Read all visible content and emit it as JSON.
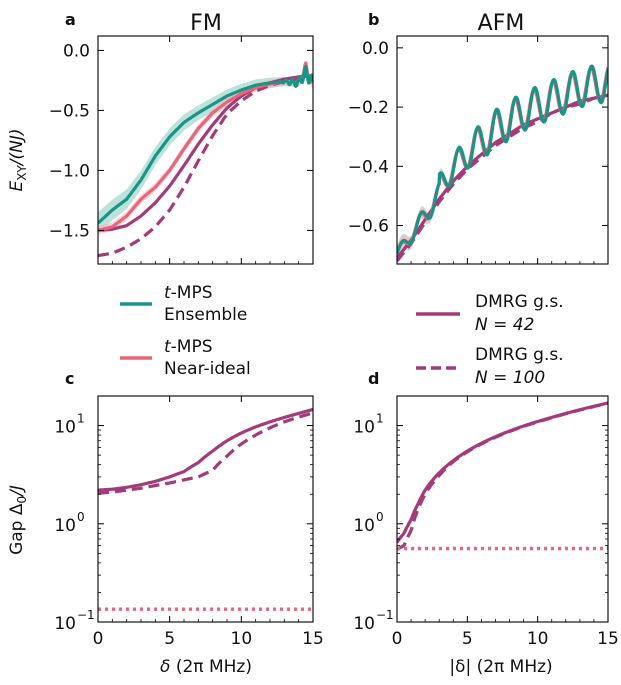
{
  "chart_data": [
    {
      "panel": "a",
      "type": "line",
      "title": "FM",
      "ylabel": "E_XY/(NJ)",
      "xlim": [
        0,
        15
      ],
      "ylim": [
        -1.78,
        0.12
      ],
      "yticks": [
        "0.0",
        "−0.5",
        "−1.0",
        "−1.5"
      ],
      "ytick_values": [
        0,
        -0.5,
        -1.0,
        -1.5
      ],
      "series": [
        {
          "key": "ensemble",
          "x": [
            0,
            1,
            2,
            3,
            4,
            5,
            6,
            7,
            8,
            9,
            10,
            11,
            12,
            13,
            14,
            14.5,
            15
          ],
          "y": [
            -1.44,
            -1.33,
            -1.24,
            -1.08,
            -0.88,
            -0.72,
            -0.6,
            -0.52,
            -0.45,
            -0.38,
            -0.33,
            -0.29,
            -0.27,
            -0.26,
            -0.27,
            -0.18,
            -0.28
          ]
        },
        {
          "key": "near_ideal",
          "x": [
            0,
            1,
            2,
            3,
            4,
            5,
            6,
            7,
            8,
            9,
            10,
            11,
            12,
            13,
            14,
            14.5,
            15
          ],
          "y": [
            -1.5,
            -1.47,
            -1.38,
            -1.24,
            -1.14,
            -1.0,
            -0.82,
            -0.65,
            -0.52,
            -0.43,
            -0.36,
            -0.31,
            -0.28,
            -0.26,
            -0.27,
            -0.15,
            -0.3
          ]
        },
        {
          "key": "dmrg42",
          "x": [
            0,
            1,
            2,
            3,
            4,
            5,
            6,
            7,
            8,
            9,
            10,
            11,
            12,
            13,
            14,
            15
          ],
          "y": [
            -1.5,
            -1.49,
            -1.46,
            -1.38,
            -1.27,
            -1.13,
            -0.96,
            -0.78,
            -0.62,
            -0.48,
            -0.38,
            -0.31,
            -0.27,
            -0.24,
            -0.22,
            -0.21
          ]
        },
        {
          "key": "dmrg100",
          "x": [
            0,
            1,
            2,
            3,
            4,
            5,
            6,
            7,
            8,
            9,
            10,
            11,
            12,
            13,
            14,
            15
          ],
          "y": [
            -1.71,
            -1.69,
            -1.64,
            -1.57,
            -1.47,
            -1.33,
            -1.14,
            -0.92,
            -0.71,
            -0.53,
            -0.42,
            -0.34,
            -0.29,
            -0.26,
            -0.24,
            -0.23
          ]
        }
      ]
    },
    {
      "panel": "b",
      "type": "line",
      "title": "AFM",
      "xlim": [
        0,
        15
      ],
      "ylim": [
        -0.73,
        0.04
      ],
      "yticks": [
        "0.0",
        "−0.2",
        "−0.4",
        "−0.6"
      ],
      "ytick_values": [
        0,
        -0.2,
        -0.4,
        -0.6
      ],
      "series": [
        {
          "key": "ensemble",
          "type": "oscillating",
          "amp": 0.065,
          "period": 1.35
        },
        {
          "key": "near_ideal",
          "type": "oscillating",
          "amp": 0.06,
          "period": 1.35
        },
        {
          "key": "dmrg42",
          "x": [
            0,
            1,
            2,
            3,
            4,
            5,
            6,
            7,
            8,
            9,
            10,
            11,
            12,
            13,
            14,
            15
          ],
          "y": [
            -0.71,
            -0.65,
            -0.58,
            -0.51,
            -0.45,
            -0.4,
            -0.36,
            -0.32,
            -0.29,
            -0.26,
            -0.24,
            -0.22,
            -0.2,
            -0.18,
            -0.17,
            -0.16
          ]
        },
        {
          "key": "dmrg100",
          "x": [
            0,
            1,
            2,
            3,
            4,
            5,
            6,
            7,
            8,
            9,
            10,
            11,
            12,
            13,
            14,
            15
          ],
          "y": [
            -0.72,
            -0.66,
            -0.59,
            -0.52,
            -0.46,
            -0.41,
            -0.37,
            -0.33,
            -0.3,
            -0.27,
            -0.25,
            -0.22,
            -0.2,
            -0.19,
            -0.17,
            -0.16
          ]
        }
      ]
    },
    {
      "panel": "c",
      "type": "line",
      "yscale": "log",
      "xlabel": "δ (2π MHz)",
      "ylabel": "Gap Δ0/J",
      "xlim": [
        0,
        15
      ],
      "ylim": [
        0.1,
        20
      ],
      "xticks": [
        "0",
        "5",
        "10",
        "15"
      ],
      "series": [
        {
          "key": "dmrg42",
          "x": [
            0,
            1,
            2,
            3,
            4,
            5,
            6,
            7,
            8,
            9,
            10,
            11,
            12,
            13,
            14,
            15
          ],
          "y": [
            2.2,
            2.25,
            2.35,
            2.5,
            2.7,
            3.0,
            3.4,
            4.2,
            5.5,
            7.0,
            8.4,
            9.7,
            10.9,
            12.1,
            13.3,
            14.6
          ]
        },
        {
          "key": "dmrg100",
          "x": [
            0,
            1,
            2,
            3,
            4,
            5,
            6,
            7,
            8,
            9,
            10,
            11,
            12,
            13,
            14,
            15
          ],
          "y": [
            2.05,
            2.1,
            2.2,
            2.3,
            2.45,
            2.6,
            2.8,
            3.0,
            3.5,
            4.9,
            6.5,
            8.0,
            9.5,
            10.9,
            12.2,
            13.4
          ]
        },
        {
          "key": "dotted_ref",
          "x": [
            0,
            15
          ],
          "y": [
            0.135,
            0.135
          ]
        }
      ]
    },
    {
      "panel": "d",
      "type": "line",
      "yscale": "log",
      "xlabel": "|δ| (2π MHz)",
      "xlim": [
        0,
        15
      ],
      "ylim": [
        0.1,
        20
      ],
      "xticks": [
        "0",
        "5",
        "10",
        "15"
      ],
      "series": [
        {
          "key": "dmrg42",
          "x": [
            0,
            0.5,
            1,
            1.5,
            2,
            3,
            4,
            5,
            6,
            7,
            8,
            9,
            10,
            11,
            12,
            13,
            14,
            15
          ],
          "y": [
            0.65,
            0.8,
            1.1,
            1.6,
            2.2,
            3.3,
            4.4,
            5.5,
            6.6,
            7.7,
            8.8,
            9.9,
            11.0,
            12.1,
            13.3,
            14.5,
            15.7,
            17.0
          ]
        },
        {
          "key": "dmrg100",
          "x": [
            0,
            0.5,
            1,
            1.5,
            2,
            3,
            4,
            5,
            6,
            7,
            8,
            9,
            10,
            11,
            12,
            13,
            14,
            15
          ],
          "y": [
            0.55,
            0.6,
            0.85,
            1.4,
            2.0,
            3.1,
            4.3,
            5.4,
            6.5,
            7.6,
            8.7,
            9.8,
            10.9,
            12.0,
            13.2,
            14.4,
            15.6,
            16.9
          ]
        },
        {
          "key": "dotted_ref",
          "x": [
            0,
            15
          ],
          "y": [
            0.56,
            0.56
          ]
        }
      ]
    }
  ],
  "panels": {
    "a": {
      "letter": "a",
      "title": "FM",
      "ylabel": "E",
      "ylabel_sub": "XY",
      "ylabel_rest": "/(NJ)"
    },
    "b": {
      "letter": "b",
      "title": "AFM"
    },
    "c": {
      "letter": "c",
      "ylabel_pre": "Gap Δ",
      "ylabel_sub": "0",
      "ylabel_post": "/J",
      "xlabel_sym": "δ",
      "xlabel_rest": " (2π MHz)"
    },
    "d": {
      "letter": "d",
      "xlabel": "|δ| (2π MHz)"
    }
  },
  "ticks": {
    "x": [
      "0",
      "5",
      "10",
      "15"
    ],
    "log": [
      {
        "base": "10",
        "exp": "1"
      },
      {
        "base": "10",
        "exp": "0"
      },
      {
        "base": "10",
        "exp": "−1"
      }
    ]
  },
  "legend": {
    "ensemble": {
      "line1": "t",
      "line1b": "-MPS",
      "line2": "Ensemble"
    },
    "near_ideal": {
      "line1": "t",
      "line1b": "-MPS",
      "line2": "Near-ideal"
    },
    "dmrg42": {
      "line1": "DMRG g.s.",
      "line2": "N = 42"
    },
    "dmrg100": {
      "line1": "DMRG g.s.",
      "line2": "N = 100"
    }
  },
  "colors": {
    "ensemble": "#1a9485",
    "ensemble_band": "#9fd6cd",
    "near_ideal": "#e8667a",
    "dmrg": "#a33a7a",
    "dotted": "#e8667a"
  }
}
